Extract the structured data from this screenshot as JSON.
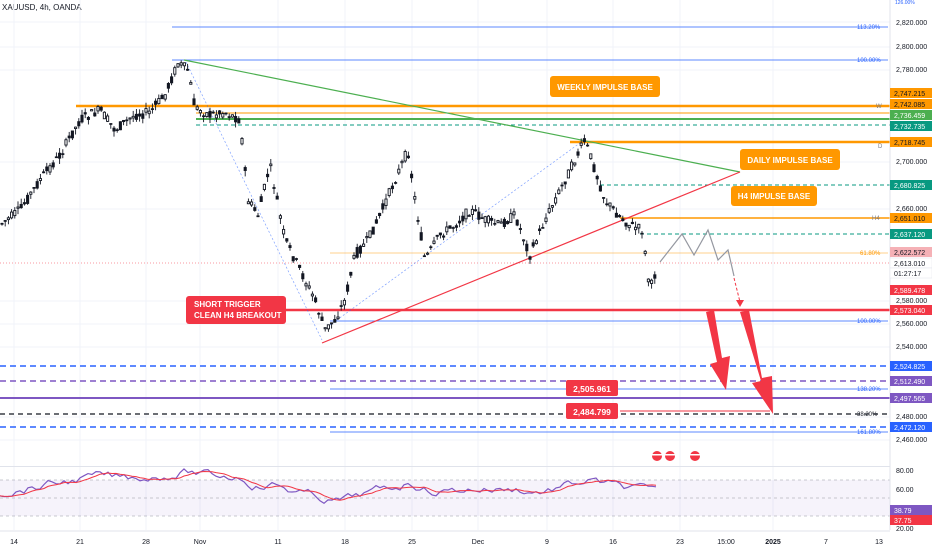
{
  "symbol": "XAUUSD, 4h, OANDA",
  "price_axis": {
    "labels": [
      "2,820.000",
      "2,800.000",
      "2,780.000",
      "2,700.000",
      "2,660.000",
      "2,580.000",
      "2,560.000",
      "2,540.000",
      "2,480.000",
      "2,460.000"
    ],
    "top_value": "126.00%"
  },
  "time_axis": {
    "labels": [
      "14",
      "21",
      "28",
      "Nov",
      "11",
      "18",
      "25",
      "Dec",
      "9",
      "16",
      "23",
      "15:00",
      "2025",
      "7",
      "13"
    ]
  },
  "fib_labels": {
    "f113": "113.20%",
    "f100_top": "100.00%",
    "f61": "61.80%",
    "f100_low": "100.00%",
    "f138": "138.20%",
    "f38": "38.20%",
    "f161": "161.80%"
  },
  "level_labels": {
    "l2747": "2,747.215",
    "l2742": "2,742.085",
    "l2736": "2,736.459",
    "l2732": "2,732.735",
    "l2718": "2,718.745",
    "l2680": "2,680.825",
    "l2651": "2,651.010",
    "l2637": "2,637.120",
    "l2622": "2,622.572",
    "l2613": "2,613.010",
    "countdown": "01:27:17",
    "l2589": "2,589.478",
    "l2573": "2,573.040",
    "l2524": "2,524.825",
    "l2512": "2,512.490",
    "l2497": "2,497.565",
    "l2472": "2,472.120"
  },
  "level_markers": {
    "w": "W",
    "d": "D",
    "h4": "H4"
  },
  "annotations": {
    "weekly": "WEEKLY IMPULSE BASE",
    "daily": "DAILY IMPULSE BASE",
    "h4": "H4 IMPULSE BASE",
    "short_line1": "SHORT TRIGGER",
    "short_line2": "CLEAN H4 BREAKOUT",
    "target1": "2,505.961",
    "target2": "2,484.799"
  },
  "rsi": {
    "labels": [
      "80.00",
      "60.00",
      "20.00"
    ],
    "value1": "38.79",
    "value2": "37.75"
  },
  "colors": {
    "orange": "#ff9800",
    "red": "#f23645",
    "green": "#4caf50",
    "teal": "#089981",
    "blue": "#2962ff",
    "purple": "#7e57c2"
  }
}
